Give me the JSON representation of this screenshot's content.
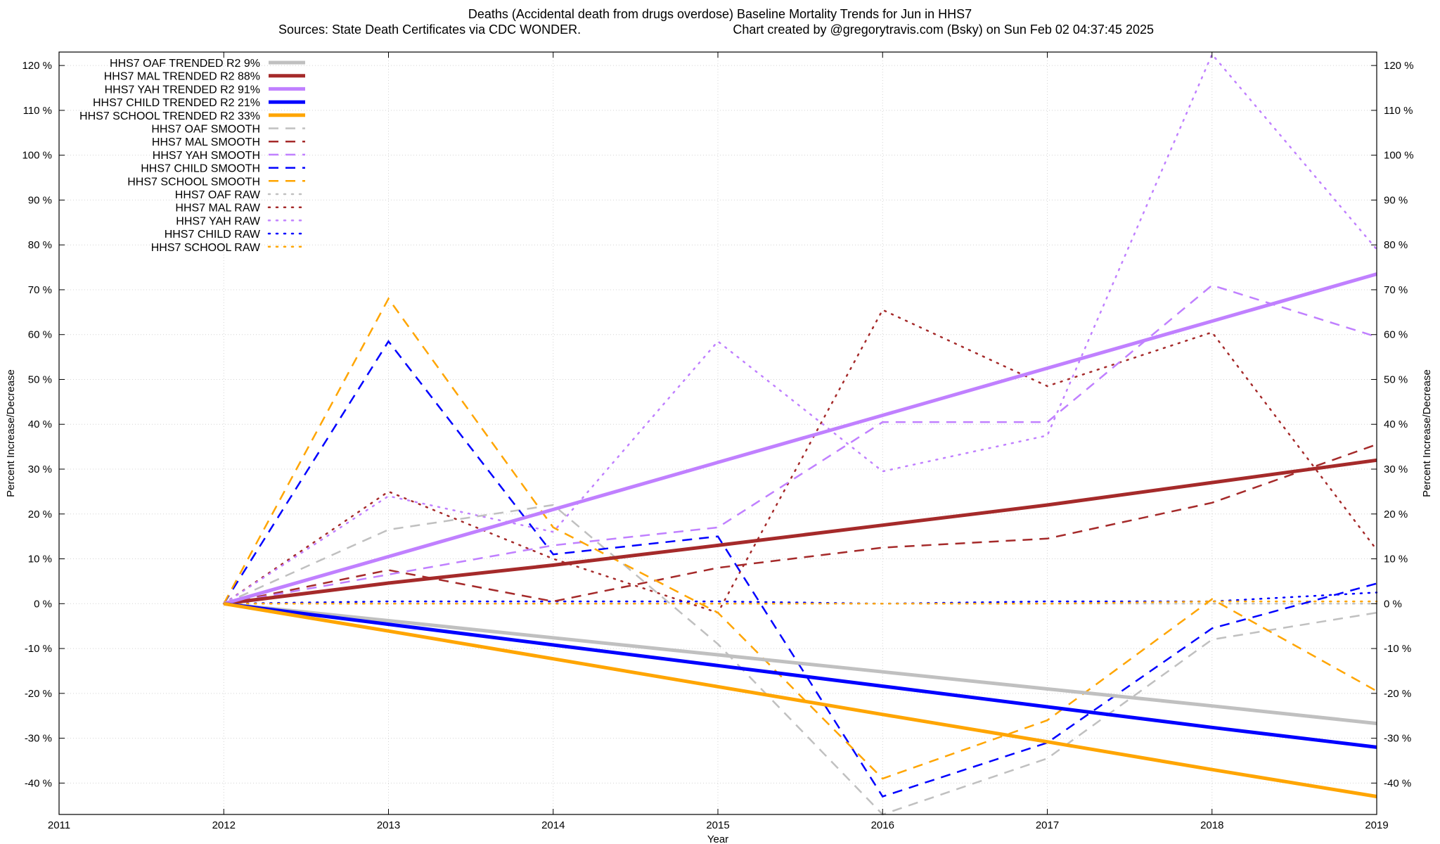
{
  "chart_data": {
    "type": "line",
    "title": "Deaths (Accidental death from drugs overdose)  Baseline Mortality Trends for Jun in HHS7",
    "subtitle_left": "Sources: State Death Certificates via CDC WONDER.",
    "subtitle_right": "Chart created by @gregorytravis.com (Bsky) on Sun Feb 02 04:37:45 2025",
    "xlabel": "Year",
    "ylabel": "Percent Increase/Decrease",
    "xlim": [
      2011,
      2019
    ],
    "ylim": [
      -47,
      123
    ],
    "x_ticks": [
      2011,
      2012,
      2013,
      2014,
      2015,
      2016,
      2017,
      2018,
      2019
    ],
    "y_ticks": [
      -40,
      -30,
      -20,
      -10,
      0,
      10,
      20,
      30,
      40,
      50,
      60,
      70,
      80,
      90,
      100,
      110,
      120
    ],
    "y_tick_labels": [
      "-40 %",
      "-30 %",
      "-20 %",
      "-10 %",
      "0 %",
      "10 %",
      "20 %",
      "30 %",
      "40 %",
      "50 %",
      "60 %",
      "70 %",
      "80 %",
      "90 %",
      "100 %",
      "110 %",
      "120 %"
    ],
    "grid": true,
    "legend_position": "top-left",
    "colors": {
      "oaf": "#c0c0c0",
      "mal": "#a52a2a",
      "yah": "#c080ff",
      "child": "#0000ff",
      "school": "#ffa500"
    },
    "x": [
      2012,
      2013,
      2014,
      2015,
      2016,
      2017,
      2018,
      2019
    ],
    "series": [
      {
        "name": "HHS7 OAF TRENDED R2  9%",
        "group": "oaf",
        "style": "trend",
        "values": [
          0,
          -3.8,
          -7.6,
          -11.4,
          -15.2,
          -19.0,
          -22.8,
          -26.7
        ]
      },
      {
        "name": "HHS7 MAL TRENDED R2  88%",
        "group": "mal",
        "style": "trend",
        "values": [
          0,
          4.6,
          8.6,
          13.0,
          17.5,
          22.0,
          27.0,
          32.0
        ]
      },
      {
        "name": "HHS7 YAH TRENDED R2  91%",
        "group": "yah",
        "style": "trend",
        "values": [
          0,
          10.5,
          21.0,
          31.5,
          42.0,
          52.5,
          63.0,
          73.5
        ]
      },
      {
        "name": "HHS7 CHILD TRENDED R2  21%",
        "group": "child",
        "style": "trend",
        "values": [
          0,
          -4.6,
          -9.2,
          -13.8,
          -18.4,
          -23.0,
          -27.6,
          -32.0
        ]
      },
      {
        "name": "HHS7 SCHOOL TRENDED R2  33%",
        "group": "school",
        "style": "trend",
        "values": [
          0,
          -6.1,
          -12.3,
          -18.5,
          -24.7,
          -30.8,
          -37.0,
          -43.0
        ]
      },
      {
        "name": "HHS7 OAF SMOOTH",
        "group": "oaf",
        "style": "smooth",
        "values": [
          0,
          16.5,
          22.0,
          -9.0,
          -47.0,
          -34.5,
          -8.0,
          -2.0
        ]
      },
      {
        "name": "HHS7 MAL SMOOTH",
        "group": "mal",
        "style": "smooth",
        "values": [
          0,
          7.5,
          0.5,
          8.0,
          12.5,
          14.5,
          22.5,
          35.5
        ]
      },
      {
        "name": "HHS7 YAH SMOOTH",
        "group": "yah",
        "style": "smooth",
        "values": [
          0,
          6.5,
          13.0,
          17.0,
          40.5,
          40.5,
          71.0,
          59.5
        ]
      },
      {
        "name": "HHS7 CHILD SMOOTH",
        "group": "child",
        "style": "smooth",
        "values": [
          0,
          58.5,
          11.0,
          15.0,
          -43.0,
          -31.0,
          -5.5,
          4.5
        ]
      },
      {
        "name": "HHS7 SCHOOL SMOOTH",
        "group": "school",
        "style": "smooth",
        "values": [
          0,
          68.0,
          17.0,
          -2.0,
          -39.0,
          -26.0,
          1.0,
          -19.5
        ]
      },
      {
        "name": "HHS7 OAF RAW",
        "group": "oaf",
        "style": "raw",
        "values": [
          0,
          0,
          0,
          0,
          0,
          0,
          0,
          0
        ]
      },
      {
        "name": "HHS7 MAL RAW",
        "group": "mal",
        "style": "raw",
        "values": [
          0,
          25.0,
          10.0,
          -2.0,
          65.5,
          48.5,
          60.5,
          12.0
        ]
      },
      {
        "name": "HHS7 YAH RAW",
        "group": "yah",
        "style": "raw",
        "values": [
          0,
          24.0,
          16.0,
          58.5,
          29.5,
          37.5,
          122.5,
          79.0
        ]
      },
      {
        "name": "HHS7 CHILD RAW",
        "group": "child",
        "style": "raw",
        "values": [
          0,
          0.5,
          0.5,
          0.5,
          0,
          0.5,
          0.5,
          2.5
        ]
      },
      {
        "name": "HHS7 SCHOOL RAW",
        "group": "school",
        "style": "raw",
        "values": [
          0,
          0,
          0,
          0,
          0,
          0,
          0.5,
          0.5
        ]
      }
    ]
  }
}
